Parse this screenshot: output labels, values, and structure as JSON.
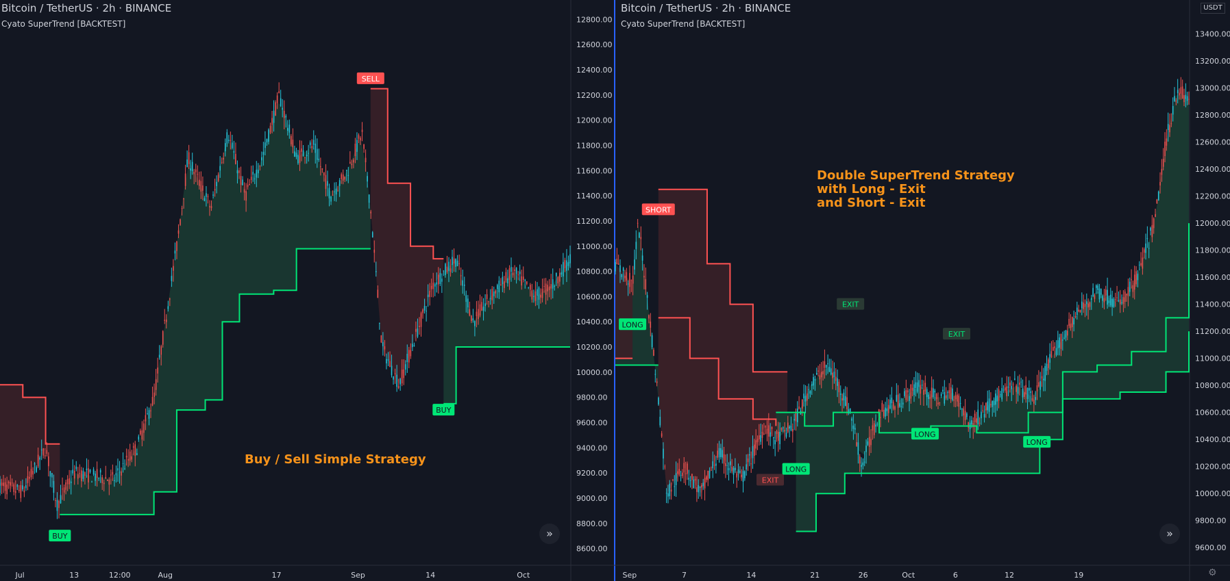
{
  "colors": {
    "bg": "#131722",
    "grid": "#1e222d",
    "up": "#26c6da",
    "down": "#ef5350",
    "green": "#00e676",
    "red": "#ff5252",
    "greenFill": "#1b3a32",
    "redFill": "#3a2028",
    "annotation": "#f7931a",
    "text": "#d1d4dc",
    "divider": "#2962ff"
  },
  "chart_data": [
    {
      "type": "candlestick-strategy",
      "header": "Bitcoin / TetherUS · 2h · BINANCE",
      "indicator": "Cyato SuperTrend [BACKTEST]",
      "annotation": [
        "Buy / Sell Simple Strategy"
      ],
      "y_ticks": [
        "12800.00",
        "12600.00",
        "12400.00",
        "12200.00",
        "12000.00",
        "11800.00",
        "11600.00",
        "11400.00",
        "11200.00",
        "11000.00",
        "10800.00",
        "10600.00",
        "10400.00",
        "10200.00",
        "10000.00",
        "9800.00",
        "9600.00",
        "9400.00",
        "9200.00",
        "9000.00",
        "8800.00",
        "8600.00"
      ],
      "ylim": [
        8500,
        12900
      ],
      "x_ticks": [
        "Jul",
        "13",
        "12:00",
        "Aug",
        "17",
        "Sep",
        "14",
        "Oct"
      ],
      "signals": [
        {
          "label": "BUY",
          "kind": "green",
          "t": 0.105,
          "price": 8700
        },
        {
          "label": "SELL",
          "kind": "red",
          "t": 0.65,
          "price": 12330
        },
        {
          "label": "BUY",
          "kind": "green",
          "t": 0.778,
          "price": 9700
        }
      ],
      "price_path": [
        [
          0,
          9100
        ],
        [
          0.04,
          9050
        ],
        [
          0.08,
          9400
        ],
        [
          0.1,
          8950
        ],
        [
          0.13,
          9200
        ],
        [
          0.2,
          9150
        ],
        [
          0.24,
          9400
        ],
        [
          0.27,
          9800
        ],
        [
          0.29,
          10400
        ],
        [
          0.31,
          11000
        ],
        [
          0.33,
          11700
        ],
        [
          0.37,
          11300
        ],
        [
          0.4,
          11900
        ],
        [
          0.43,
          11400
        ],
        [
          0.46,
          11700
        ],
        [
          0.49,
          12200
        ],
        [
          0.52,
          11700
        ],
        [
          0.55,
          11800
        ],
        [
          0.58,
          11400
        ],
        [
          0.61,
          11600
        ],
        [
          0.635,
          11900
        ],
        [
          0.65,
          11300
        ],
        [
          0.67,
          10200
        ],
        [
          0.7,
          9900
        ],
        [
          0.73,
          10300
        ],
        [
          0.76,
          10700
        ],
        [
          0.8,
          10900
        ],
        [
          0.83,
          10400
        ],
        [
          0.86,
          10600
        ],
        [
          0.9,
          10800
        ],
        [
          0.94,
          10600
        ],
        [
          0.97,
          10700
        ],
        [
          1.0,
          10900
        ]
      ],
      "trend_green": [
        [
          0.105,
          8870
        ],
        [
          0.24,
          8870
        ],
        [
          0.27,
          9050
        ],
        [
          0.31,
          9700
        ],
        [
          0.36,
          9780
        ],
        [
          0.39,
          10400
        ],
        [
          0.42,
          10620
        ],
        [
          0.48,
          10650
        ],
        [
          0.52,
          10980
        ],
        [
          0.65,
          10980
        ]
      ],
      "trend_red": [
        [
          0,
          9900
        ],
        [
          0.04,
          9800
        ],
        [
          0.08,
          9430
        ],
        [
          0.105,
          9430
        ]
      ],
      "trend_red2": [
        [
          0.65,
          12250
        ],
        [
          0.68,
          11500
        ],
        [
          0.72,
          11000
        ],
        [
          0.76,
          10900
        ],
        [
          0.778,
          10900
        ]
      ],
      "trend_green2": [
        [
          0.778,
          9750
        ],
        [
          0.8,
          10200
        ],
        [
          1.0,
          10200
        ]
      ]
    },
    {
      "type": "candlestick-strategy",
      "header": "Bitcoin / TetherUS · 2h · BINANCE",
      "indicator": "Cyato SuperTrend [BACKTEST]",
      "annotation": [
        "Double SuperTrend Strategy",
        "with Long - Exit",
        "and Short - Exit"
      ],
      "y_ticks": [
        "13400.00",
        "13200.00",
        "13000.00",
        "12800.00",
        "12600.00",
        "12400.00",
        "12200.00",
        "12000.00",
        "11800.00",
        "11600.00",
        "11400.00",
        "11200.00",
        "11000.00",
        "10800.00",
        "10600.00",
        "10400.00",
        "10200.00",
        "10000.00",
        "9800.00",
        "9600.00"
      ],
      "ylim": [
        9500,
        13600
      ],
      "x_ticks": [
        "Sep",
        "7",
        "14",
        "21",
        "26",
        "Oct",
        "6",
        "12",
        "19"
      ],
      "currency": "USDT",
      "signals": [
        {
          "label": "LONG",
          "kind": "green",
          "t": 0.03,
          "price": 11250
        },
        {
          "label": "SHORT",
          "kind": "red",
          "t": 0.075,
          "price": 12100
        },
        {
          "label": "EXIT",
          "kind": "dred",
          "t": 0.27,
          "price": 10100
        },
        {
          "label": "LONG",
          "kind": "green",
          "t": 0.315,
          "price": 10180
        },
        {
          "label": "EXIT",
          "kind": "dgreen",
          "t": 0.41,
          "price": 11400
        },
        {
          "label": "LONG",
          "kind": "green",
          "t": 0.54,
          "price": 10440
        },
        {
          "label": "EXIT",
          "kind": "dgreen",
          "t": 0.595,
          "price": 11180
        },
        {
          "label": "LONG",
          "kind": "green",
          "t": 0.735,
          "price": 10380
        }
      ],
      "price_path": [
        [
          0,
          11700
        ],
        [
          0.03,
          11550
        ],
        [
          0.04,
          12000
        ],
        [
          0.06,
          11300
        ],
        [
          0.075,
          10700
        ],
        [
          0.09,
          10000
        ],
        [
          0.12,
          10200
        ],
        [
          0.15,
          10000
        ],
        [
          0.18,
          10300
        ],
        [
          0.22,
          10100
        ],
        [
          0.26,
          10500
        ],
        [
          0.28,
          10400
        ],
        [
          0.31,
          10500
        ],
        [
          0.34,
          10800
        ],
        [
          0.37,
          10950
        ],
        [
          0.39,
          10800
        ],
        [
          0.41,
          10600
        ],
        [
          0.43,
          10200
        ],
        [
          0.46,
          10600
        ],
        [
          0.5,
          10700
        ],
        [
          0.53,
          10800
        ],
        [
          0.56,
          10700
        ],
        [
          0.59,
          10750
        ],
        [
          0.62,
          10500
        ],
        [
          0.66,
          10700
        ],
        [
          0.7,
          10800
        ],
        [
          0.73,
          10700
        ],
        [
          0.76,
          11000
        ],
        [
          0.8,
          11300
        ],
        [
          0.84,
          11500
        ],
        [
          0.88,
          11400
        ],
        [
          0.91,
          11600
        ],
        [
          0.94,
          12000
        ],
        [
          0.96,
          12600
        ],
        [
          0.98,
          13000
        ],
        [
          1.0,
          12900
        ]
      ],
      "trend_red": [
        [
          0,
          11000
        ],
        [
          0.03,
          11000
        ]
      ],
      "trend_green": [
        [
          0,
          10950
        ],
        [
          0.075,
          10950
        ]
      ],
      "trend_red2": [
        [
          0.075,
          12250
        ],
        [
          0.13,
          12250
        ],
        [
          0.16,
          11700
        ],
        [
          0.2,
          11400
        ],
        [
          0.24,
          10900
        ],
        [
          0.3,
          10900
        ]
      ],
      "trend_red3": [
        [
          0.075,
          11300
        ],
        [
          0.13,
          11000
        ],
        [
          0.18,
          10700
        ],
        [
          0.24,
          10550
        ],
        [
          0.28,
          10500
        ]
      ],
      "trend_green2": [
        [
          0.315,
          9720
        ],
        [
          0.35,
          10000
        ],
        [
          0.4,
          10150
        ],
        [
          0.6,
          10150
        ],
        [
          0.7,
          10150
        ],
        [
          0.74,
          10400
        ],
        [
          0.78,
          10900
        ],
        [
          0.84,
          10950
        ],
        [
          0.9,
          11050
        ],
        [
          0.96,
          11300
        ],
        [
          1.0,
          12000
        ]
      ],
      "trend_green3": [
        [
          0.28,
          10600
        ],
        [
          0.33,
          10500
        ],
        [
          0.38,
          10600
        ],
        [
          0.46,
          10450
        ],
        [
          0.55,
          10500
        ],
        [
          0.63,
          10450
        ],
        [
          0.72,
          10600
        ],
        [
          0.78,
          10700
        ],
        [
          0.88,
          10750
        ],
        [
          0.96,
          10900
        ],
        [
          1.0,
          11200
        ]
      ]
    }
  ]
}
